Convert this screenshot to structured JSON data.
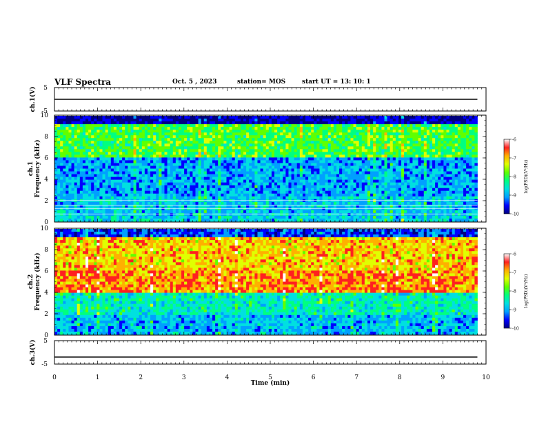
{
  "header": {
    "title": "VLF Spectra",
    "date": "Oct. 5 , 2023",
    "station": "station= MOS",
    "start": "start  UT =   13: 10: 1"
  },
  "colors": {
    "scale": [
      "#000080",
      "#0000ff",
      "#00a0ff",
      "#00e0e0",
      "#00ff80",
      "#60ff00",
      "#e0ff00",
      "#ffb000",
      "#ff2020",
      "#ffffff"
    ]
  },
  "chart_data": [
    {
      "type": "line",
      "panel": "ch1-waveform",
      "ylabel": "ch.1(V)",
      "ylim": [
        -5,
        5
      ],
      "yticks": [
        "5",
        "-5"
      ],
      "series": [
        {
          "values": [
            0,
            0,
            0,
            0,
            0,
            0,
            0,
            0,
            0,
            0,
            0
          ]
        }
      ],
      "x": [
        0,
        1,
        2,
        3,
        4,
        5,
        6,
        7,
        8,
        9,
        9.8
      ]
    },
    {
      "type": "heatmap",
      "panel": "ch1-spectrogram",
      "ylabel_top": "ch.1",
      "ylabel": "Frequency (kHz)",
      "ylim": [
        0,
        10
      ],
      "yticks": [
        "0",
        "2",
        "4",
        "6",
        "8",
        "10"
      ],
      "xlim": [
        0,
        9.8
      ],
      "colorbar": {
        "label": "log(PSD)(V²/Hz)",
        "range": [
          -10,
          -6
        ],
        "ticks": [
          "-6",
          "-7",
          "-8",
          "-9",
          "-10"
        ]
      }
    },
    {
      "type": "heatmap",
      "panel": "ch2-spectrogram",
      "ylabel_top": "ch.2",
      "ylabel": "Frequency (kHz)",
      "ylim": [
        0,
        10
      ],
      "yticks": [
        "0",
        "2",
        "4",
        "6",
        "8",
        "10"
      ],
      "xlim": [
        0,
        9.8
      ],
      "colorbar": {
        "label": "log(PSD)(V²/Hz)",
        "range": [
          -10,
          -6
        ],
        "ticks": [
          "-6",
          "-7",
          "-8",
          "-9",
          "-10"
        ]
      }
    },
    {
      "type": "line",
      "panel": "ch3-waveform",
      "ylabel": "ch.3(V)",
      "ylim": [
        -5,
        5
      ],
      "yticks": [
        "5",
        "-5"
      ],
      "series": [
        {
          "values": [
            -2,
            -2,
            -2,
            -2,
            -2,
            -2,
            -2,
            -2,
            -2,
            -2,
            -2
          ]
        }
      ],
      "x": [
        0,
        1,
        2,
        3,
        4,
        5,
        6,
        7,
        8,
        9,
        9.8
      ]
    }
  ],
  "xaxis": {
    "label": "Time (min)",
    "ticks": [
      "0",
      "1",
      "2",
      "3",
      "4",
      "5",
      "6",
      "7",
      "8",
      "9",
      "10"
    ],
    "xlim": [
      0,
      10
    ]
  }
}
